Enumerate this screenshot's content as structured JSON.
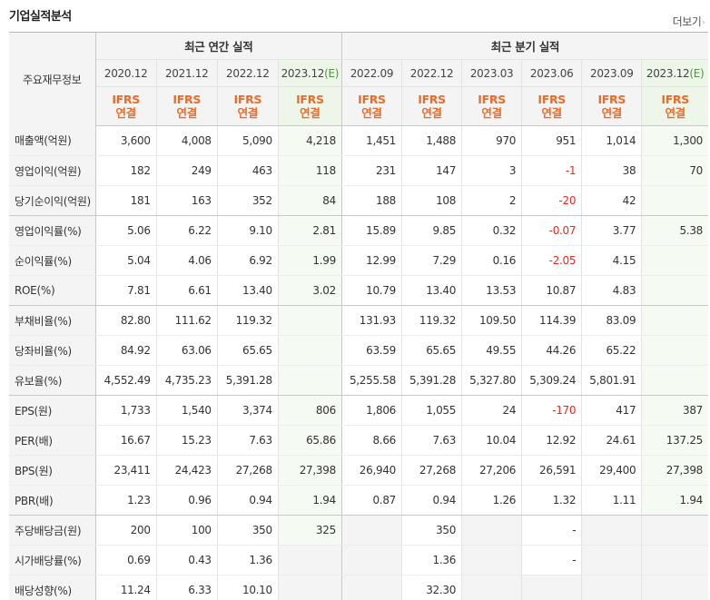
{
  "header": {
    "title": "기업실적분석",
    "more_label": "더보기",
    "more_arrow": "›"
  },
  "table": {
    "corner_label": "주요재무정보",
    "annual_group_label": "최근 연간 실적",
    "quarter_group_label": "최근 분기 실적",
    "annual_periods": [
      "2020.12",
      "2021.12",
      "2022.12",
      "2023.12"
    ],
    "annual_est_suffix": "(E)",
    "quarter_periods": [
      "2022.09",
      "2022.12",
      "2023.03",
      "2023.06",
      "2023.09",
      "2023.12"
    ],
    "quarter_est_suffix": "(E)",
    "ifrs_top": "IFRS",
    "ifrs_bottom": "연결",
    "rows": [
      {
        "label": "매출액(억원)",
        "values": [
          "3,600",
          "4,008",
          "5,090",
          "4,218",
          "1,451",
          "1,488",
          "970",
          "951",
          "1,014",
          "1,300"
        ]
      },
      {
        "label": "영업이익(억원)",
        "values": [
          "182",
          "249",
          "463",
          "118",
          "231",
          "147",
          "3",
          "-1",
          "38",
          "70"
        ]
      },
      {
        "label": "당기순이익(억원)",
        "values": [
          "181",
          "163",
          "352",
          "84",
          "188",
          "108",
          "2",
          "-20",
          "42",
          ""
        ]
      },
      {
        "label": "영업이익률(%)",
        "values": [
          "5.06",
          "6.22",
          "9.10",
          "2.81",
          "15.89",
          "9.85",
          "0.32",
          "-0.07",
          "3.77",
          "5.38"
        ]
      },
      {
        "label": "순이익률(%)",
        "values": [
          "5.04",
          "4.06",
          "6.92",
          "1.99",
          "12.99",
          "7.29",
          "0.16",
          "-2.05",
          "4.15",
          ""
        ]
      },
      {
        "label": "ROE(%)",
        "values": [
          "7.81",
          "6.61",
          "13.40",
          "3.02",
          "10.79",
          "13.40",
          "13.53",
          "10.87",
          "4.83",
          ""
        ]
      },
      {
        "label": "부채비율(%)",
        "values": [
          "82.80",
          "111.62",
          "119.32",
          "",
          "131.93",
          "119.32",
          "109.50",
          "114.39",
          "83.09",
          ""
        ]
      },
      {
        "label": "당좌비율(%)",
        "values": [
          "84.92",
          "63.06",
          "65.65",
          "",
          "63.59",
          "65.65",
          "49.55",
          "44.26",
          "65.22",
          ""
        ]
      },
      {
        "label": "유보율(%)",
        "values": [
          "4,552.49",
          "4,735.23",
          "5,391.28",
          "",
          "5,255.58",
          "5,391.28",
          "5,327.80",
          "5,309.24",
          "5,801.91",
          ""
        ]
      },
      {
        "label": "EPS(원)",
        "values": [
          "1,733",
          "1,540",
          "3,374",
          "806",
          "1,806",
          "1,055",
          "24",
          "-170",
          "417",
          "387"
        ]
      },
      {
        "label": "PER(배)",
        "values": [
          "16.67",
          "15.23",
          "7.63",
          "65.86",
          "8.66",
          "7.63",
          "10.04",
          "12.92",
          "24.61",
          "137.25"
        ]
      },
      {
        "label": "BPS(원)",
        "values": [
          "23,411",
          "24,423",
          "27,268",
          "27,398",
          "26,940",
          "27,268",
          "27,206",
          "26,591",
          "29,400",
          "27,398"
        ]
      },
      {
        "label": "PBR(배)",
        "values": [
          "1.23",
          "0.96",
          "0.94",
          "1.94",
          "0.87",
          "0.94",
          "1.26",
          "1.32",
          "1.11",
          "1.94"
        ]
      },
      {
        "label": "주당배당금(원)",
        "values": [
          "200",
          "100",
          "350",
          "325",
          "",
          "350",
          "",
          "-",
          "",
          ""
        ]
      },
      {
        "label": "시가배당률(%)",
        "values": [
          "0.69",
          "0.43",
          "1.36",
          "",
          "",
          "1.36",
          "",
          "-",
          "",
          ""
        ]
      },
      {
        "label": "배당성향(%)",
        "values": [
          "11.24",
          "6.33",
          "10.10",
          "",
          "",
          "32.30",
          "",
          "",
          "",
          ""
        ]
      }
    ]
  },
  "colors": {
    "accent_orange": "#f06a24",
    "estimate_green": "#4a9a36",
    "negative_red": "#e8291d"
  }
}
